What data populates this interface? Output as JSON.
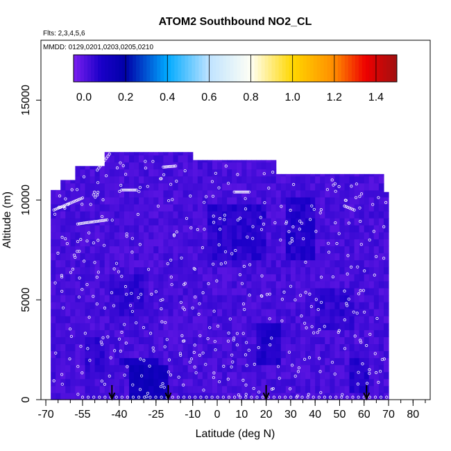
{
  "chart_data": {
    "type": "heatmap",
    "title": "ATOM2 Southbound NO2_CL",
    "flights_note": "Flts: 2,3,4,5,6",
    "dates_note": "MMDD: 0129,0201,0203,0205,0210",
    "xlabel": "Latitude (deg N)",
    "ylabel": "Altitude (m)",
    "xlim": [
      -72,
      87
    ],
    "ylim": [
      0,
      18000
    ],
    "x_ticks": [
      -70,
      -55,
      -40,
      -25,
      -10,
      0,
      10,
      20,
      30,
      40,
      50,
      60,
      70,
      80
    ],
    "x_tick_labels": [
      "-70",
      "-55",
      "-40",
      "-25",
      "-10",
      "0",
      "10",
      "20",
      "30",
      "40",
      "50",
      "60",
      "70",
      "80"
    ],
    "y_ticks": [
      0,
      5000,
      10000,
      15000
    ],
    "y_tick_labels": [
      "0",
      "5000",
      "10000",
      "15000"
    ],
    "colorbar": {
      "range": [
        -0.05,
        1.5
      ],
      "tick_values": [
        0.0,
        0.2,
        0.4,
        0.6,
        0.8,
        1.0,
        1.2,
        1.4
      ],
      "tick_labels": [
        "0.0",
        "0.2",
        "0.4",
        "0.6",
        "0.8",
        "1.0",
        "1.2",
        "1.4"
      ],
      "color_stops": [
        {
          "v": -0.05,
          "c": "#7B1FEF"
        },
        {
          "v": 0.08,
          "c": "#1A00C8"
        },
        {
          "v": 0.2,
          "c": "#0000A8"
        },
        {
          "v": 0.4,
          "c": "#00AAFF"
        },
        {
          "v": 0.6,
          "c": "#BFE3FF"
        },
        {
          "v": 0.8,
          "c": "#FFFFF5"
        },
        {
          "v": 1.0,
          "c": "#FFD700"
        },
        {
          "v": 1.2,
          "c": "#FF8C00"
        },
        {
          "v": 1.35,
          "c": "#EE0000"
        },
        {
          "v": 1.5,
          "c": "#A01010"
        }
      ]
    },
    "field": {
      "background_value": 0.02,
      "profile": [
        {
          "lat": -68,
          "top": 10500
        },
        {
          "lat": -64,
          "top": 10500
        },
        {
          "lat": -64,
          "top": 11000
        },
        {
          "lat": -58,
          "top": 11000
        },
        {
          "lat": -58,
          "top": 11700
        },
        {
          "lat": -47,
          "top": 11700
        },
        {
          "lat": -47,
          "top": 12400
        },
        {
          "lat": -11,
          "top": 12400
        },
        {
          "lat": -11,
          "top": 12000
        },
        {
          "lat": 23,
          "top": 12000
        },
        {
          "lat": 23,
          "top": 11300
        },
        {
          "lat": 67,
          "top": 11300
        },
        {
          "lat": 67,
          "top": 10400
        },
        {
          "lat": 70,
          "top": 10400
        }
      ],
      "darker_patches": [
        {
          "lat": [
            -36,
            -20
          ],
          "alt": [
            0,
            1500
          ],
          "value": 0.13
        },
        {
          "lat": [
            -40,
            -25
          ],
          "alt": [
            1500,
            2000
          ],
          "value": 0.09
        },
        {
          "lat": [
            15,
            25
          ],
          "alt": [
            1500,
            3800
          ],
          "value": 0.08
        },
        {
          "lat": [
            54,
            62
          ],
          "alt": [
            200,
            2000
          ],
          "value": 0.07
        },
        {
          "lat": [
            28,
            40
          ],
          "alt": [
            7000,
            10000
          ],
          "value": 0.07
        },
        {
          "lat": [
            -5,
            20
          ],
          "alt": [
            7000,
            9500
          ],
          "value": 0.06
        },
        {
          "lat": [
            -45,
            -30
          ],
          "alt": [
            4000,
            6000
          ],
          "value": 0.05
        },
        {
          "lat": [
            40,
            55
          ],
          "alt": [
            3500,
            5500
          ],
          "value": 0.05
        },
        {
          "lat": [
            -55,
            -45
          ],
          "alt": [
            1000,
            3000
          ],
          "value": 0.05
        }
      ]
    },
    "sample_tracks": [
      {
        "lat0": -66.7,
        "alt0": 9500,
        "lat1": -55.0,
        "alt1": 10100
      },
      {
        "lat0": -57.0,
        "alt0": 8800,
        "lat1": -45.0,
        "alt1": 9000
      },
      {
        "lat0": -49.0,
        "alt0": 11500,
        "lat1": -44.0,
        "alt1": 12300
      },
      {
        "lat0": -39.0,
        "alt0": 10500,
        "lat1": -33.0,
        "alt1": 10500
      },
      {
        "lat0": -22.0,
        "alt0": 11650,
        "lat1": -17.0,
        "alt1": 11700
      },
      {
        "lat0": 7.0,
        "alt0": 10400,
        "lat1": 13.0,
        "alt1": 10400
      },
      {
        "lat0": 52.0,
        "alt0": 9700,
        "lat1": 56.0,
        "alt1": 9500
      }
    ],
    "markers_lat": [
      -43,
      -20,
      20,
      61
    ]
  }
}
